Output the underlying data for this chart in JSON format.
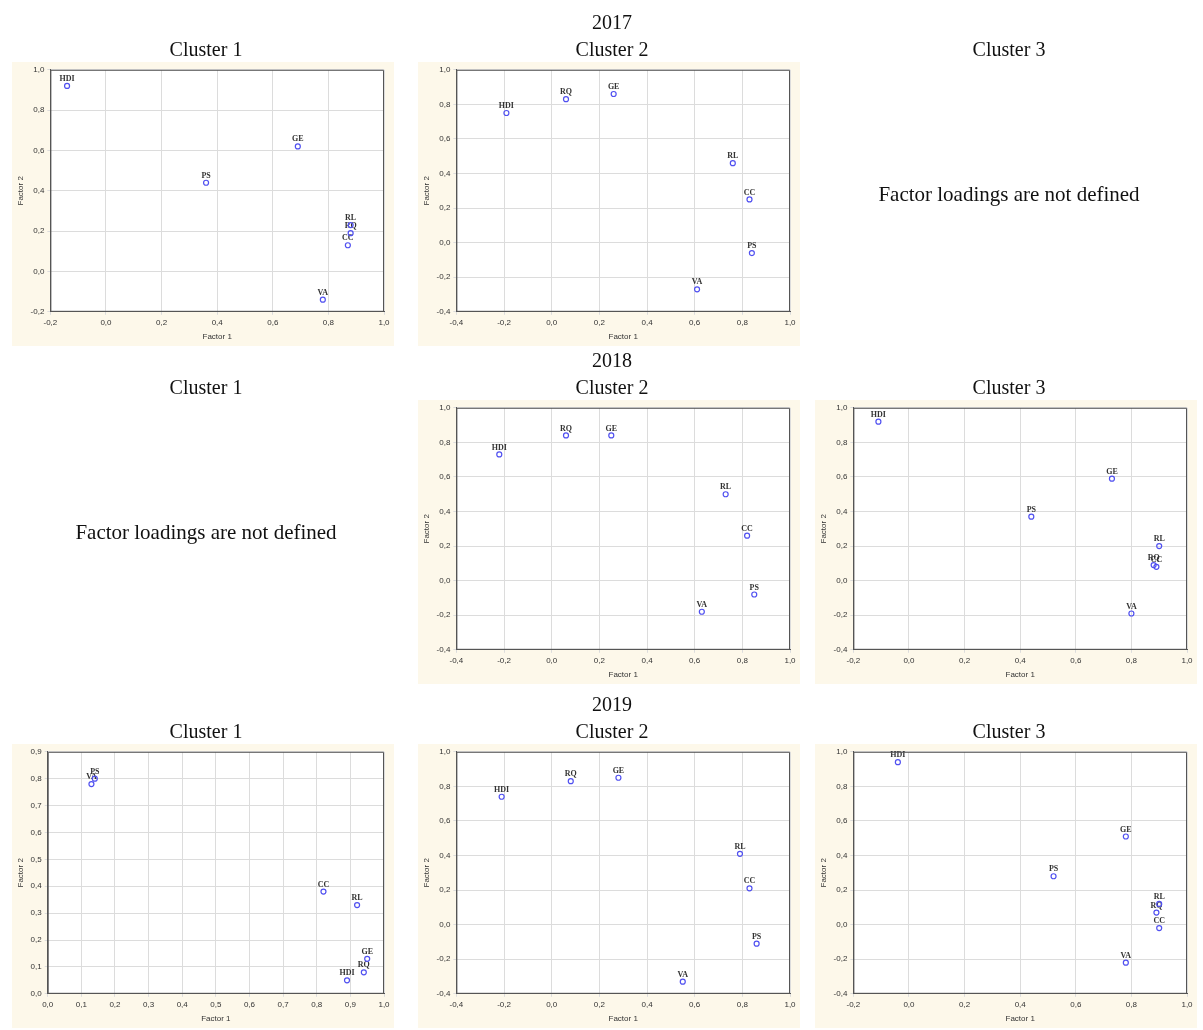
{
  "chart_data": [
    {
      "type": "scatter",
      "title": "Cluster 1",
      "xlabel": "Factor 1",
      "ylabel": "Factor 2",
      "marker": "circle",
      "grid": true,
      "xlim": [
        -0.2,
        1.0
      ],
      "ylim": [
        -0.2,
        1.0
      ],
      "xticks": [
        {
          "value": -0.2,
          "label": "-0,2"
        },
        {
          "value": 0,
          "label": "0,0"
        },
        {
          "value": 0.2,
          "label": "0,2"
        },
        {
          "value": 0.4,
          "label": "0,4"
        },
        {
          "value": 0.6,
          "label": "0,6"
        },
        {
          "value": 0.8,
          "label": "0,8"
        },
        {
          "value": 1.0,
          "label": "1,0"
        }
      ],
      "yticks": [
        {
          "value": -0.2,
          "label": "-0,2"
        },
        {
          "value": 0,
          "label": "0,0"
        },
        {
          "value": 0.2,
          "label": "0,2"
        },
        {
          "value": 0.4,
          "label": "0,4"
        },
        {
          "value": 0.6,
          "label": "0,6"
        },
        {
          "value": 0.8,
          "label": "0,8"
        },
        {
          "value": 1.0,
          "label": "1,0"
        }
      ],
      "series": [
        {
          "name": "HDI",
          "color": "#5050f0",
          "x": [
            -0.14
          ],
          "values": [
            0.92
          ]
        },
        {
          "name": "GE",
          "color": "#5050f0",
          "x": [
            0.69
          ],
          "values": [
            0.62
          ]
        },
        {
          "name": "PS",
          "color": "#5050f0",
          "x": [
            0.36
          ],
          "values": [
            0.44
          ]
        },
        {
          "name": "RL",
          "color": "#5050f0",
          "x": [
            0.88
          ],
          "values": [
            0.23
          ]
        },
        {
          "name": "RQ",
          "color": "#5050f0",
          "x": [
            0.88
          ],
          "values": [
            0.19
          ]
        },
        {
          "name": "CC",
          "color": "#5050f0",
          "x": [
            0.87
          ],
          "values": [
            0.13
          ]
        },
        {
          "name": "VA",
          "color": "#5050f0",
          "x": [
            0.78
          ],
          "values": [
            -0.14
          ]
        }
      ]
    },
    {
      "type": "scatter",
      "title": "Cluster 2",
      "annotations": [
        "2017"
      ],
      "xlabel": "Factor 1",
      "ylabel": "Factor 2",
      "marker": "circle",
      "grid": true,
      "xlim": [
        -0.4,
        1.0
      ],
      "ylim": [
        -0.4,
        1.0
      ],
      "xticks": [
        {
          "value": -0.4,
          "label": "-0,4"
        },
        {
          "value": -0.2,
          "label": "-0,2"
        },
        {
          "value": 0,
          "label": "0,0"
        },
        {
          "value": 0.2,
          "label": "0,2"
        },
        {
          "value": 0.4,
          "label": "0,4"
        },
        {
          "value": 0.6,
          "label": "0,6"
        },
        {
          "value": 0.8,
          "label": "0,8"
        },
        {
          "value": 1.0,
          "label": "1,0"
        }
      ],
      "yticks": [
        {
          "value": -0.4,
          "label": "-0,4"
        },
        {
          "value": -0.2,
          "label": "-0,2"
        },
        {
          "value": 0,
          "label": "0,0"
        },
        {
          "value": 0.2,
          "label": "0,2"
        },
        {
          "value": 0.4,
          "label": "0,4"
        },
        {
          "value": 0.6,
          "label": "0,6"
        },
        {
          "value": 0.8,
          "label": "0,8"
        },
        {
          "value": 1.0,
          "label": "1,0"
        }
      ],
      "series": [
        {
          "name": "HDI",
          "color": "#5050f0",
          "x": [
            -0.19
          ],
          "values": [
            0.75
          ]
        },
        {
          "name": "RQ",
          "color": "#5050f0",
          "x": [
            0.06
          ],
          "values": [
            0.83
          ]
        },
        {
          "name": "GE",
          "color": "#5050f0",
          "x": [
            0.26
          ],
          "values": [
            0.86
          ]
        },
        {
          "name": "RL",
          "color": "#5050f0",
          "x": [
            0.76
          ],
          "values": [
            0.46
          ]
        },
        {
          "name": "CC",
          "color": "#5050f0",
          "x": [
            0.83
          ],
          "values": [
            0.25
          ]
        },
        {
          "name": "PS",
          "color": "#5050f0",
          "x": [
            0.84
          ],
          "values": [
            -0.06
          ]
        },
        {
          "name": "VA",
          "color": "#5050f0",
          "x": [
            0.61
          ],
          "values": [
            -0.27
          ]
        }
      ]
    },
    {
      "type": "other",
      "title": "Cluster 3",
      "annotations": [
        "Factor loadings are not defined"
      ]
    },
    {
      "type": "other",
      "title": "Cluster 1",
      "annotations": [
        "Factor loadings are not defined"
      ]
    },
    {
      "type": "scatter",
      "title": "Cluster 2",
      "annotations": [
        "2018"
      ],
      "xlabel": "Factor 1",
      "ylabel": "Factor 2",
      "marker": "circle",
      "grid": true,
      "xlim": [
        -0.4,
        1.0
      ],
      "ylim": [
        -0.4,
        1.0
      ],
      "xticks": [
        {
          "value": -0.4,
          "label": "-0,4"
        },
        {
          "value": -0.2,
          "label": "-0,2"
        },
        {
          "value": 0,
          "label": "0,0"
        },
        {
          "value": 0.2,
          "label": "0,2"
        },
        {
          "value": 0.4,
          "label": "0,4"
        },
        {
          "value": 0.6,
          "label": "0,6"
        },
        {
          "value": 0.8,
          "label": "0,8"
        },
        {
          "value": 1.0,
          "label": "1,0"
        }
      ],
      "yticks": [
        {
          "value": -0.4,
          "label": "-0,4"
        },
        {
          "value": -0.2,
          "label": "-0,2"
        },
        {
          "value": 0,
          "label": "0,0"
        },
        {
          "value": 0.2,
          "label": "0,2"
        },
        {
          "value": 0.4,
          "label": "0,4"
        },
        {
          "value": 0.6,
          "label": "0,6"
        },
        {
          "value": 0.8,
          "label": "0,8"
        },
        {
          "value": 1.0,
          "label": "1,0"
        }
      ],
      "series": [
        {
          "name": "HDI",
          "color": "#5050f0",
          "x": [
            -0.22
          ],
          "values": [
            0.73
          ]
        },
        {
          "name": "RQ",
          "color": "#5050f0",
          "x": [
            0.06
          ],
          "values": [
            0.84
          ]
        },
        {
          "name": "GE",
          "color": "#5050f0",
          "x": [
            0.25
          ],
          "values": [
            0.84
          ]
        },
        {
          "name": "RL",
          "color": "#5050f0",
          "x": [
            0.73
          ],
          "values": [
            0.5
          ]
        },
        {
          "name": "CC",
          "color": "#5050f0",
          "x": [
            0.82
          ],
          "values": [
            0.26
          ]
        },
        {
          "name": "PS",
          "color": "#5050f0",
          "x": [
            0.85
          ],
          "values": [
            -0.08
          ]
        },
        {
          "name": "VA",
          "color": "#5050f0",
          "x": [
            0.63
          ],
          "values": [
            -0.18
          ]
        }
      ]
    },
    {
      "type": "scatter",
      "title": "Cluster 3",
      "xlabel": "Factor 1",
      "ylabel": "Factor 2",
      "marker": "circle",
      "grid": true,
      "xlim": [
        -0.2,
        1.0
      ],
      "ylim": [
        -0.4,
        1.0
      ],
      "xticks": [
        {
          "value": -0.2,
          "label": "-0,2"
        },
        {
          "value": 0,
          "label": "0,0"
        },
        {
          "value": 0.2,
          "label": "0,2"
        },
        {
          "value": 0.4,
          "label": "0,4"
        },
        {
          "value": 0.6,
          "label": "0,6"
        },
        {
          "value": 0.8,
          "label": "0,8"
        },
        {
          "value": 1.0,
          "label": "1,0"
        }
      ],
      "yticks": [
        {
          "value": -0.4,
          "label": "-0,4"
        },
        {
          "value": -0.2,
          "label": "-0,2"
        },
        {
          "value": 0,
          "label": "0,0"
        },
        {
          "value": 0.2,
          "label": "0,2"
        },
        {
          "value": 0.4,
          "label": "0,4"
        },
        {
          "value": 0.6,
          "label": "0,6"
        },
        {
          "value": 0.8,
          "label": "0,8"
        },
        {
          "value": 1.0,
          "label": "1,0"
        }
      ],
      "series": [
        {
          "name": "HDI",
          "color": "#5050f0",
          "x": [
            -0.11
          ],
          "values": [
            0.92
          ]
        },
        {
          "name": "GE",
          "color": "#5050f0",
          "x": [
            0.73
          ],
          "values": [
            0.59
          ]
        },
        {
          "name": "PS",
          "color": "#5050f0",
          "x": [
            0.44
          ],
          "values": [
            0.37
          ]
        },
        {
          "name": "RL",
          "color": "#5050f0",
          "x": [
            0.9
          ],
          "values": [
            0.2
          ]
        },
        {
          "name": "RQ",
          "color": "#5050f0",
          "x": [
            0.88
          ],
          "values": [
            0.09
          ]
        },
        {
          "name": "CC",
          "color": "#5050f0",
          "x": [
            0.89
          ],
          "values": [
            0.08
          ]
        },
        {
          "name": "VA",
          "color": "#5050f0",
          "x": [
            0.8
          ],
          "values": [
            -0.19
          ]
        }
      ]
    },
    {
      "type": "scatter",
      "title": "Cluster 1",
      "xlabel": "Factor 1",
      "ylabel": "Factor 2",
      "marker": "circle",
      "grid": true,
      "xlim": [
        0,
        1.0
      ],
      "ylim": [
        0,
        0.9
      ],
      "xticks": [
        {
          "value": 0,
          "label": "0,0"
        },
        {
          "value": 0.1,
          "label": "0,1"
        },
        {
          "value": 0.2,
          "label": "0,2"
        },
        {
          "value": 0.3,
          "label": "0,3"
        },
        {
          "value": 0.4,
          "label": "0,4"
        },
        {
          "value": 0.5,
          "label": "0,5"
        },
        {
          "value": 0.6,
          "label": "0,6"
        },
        {
          "value": 0.7,
          "label": "0,7"
        },
        {
          "value": 0.8,
          "label": "0,8"
        },
        {
          "value": 0.9,
          "label": "0,9"
        },
        {
          "value": 1.0,
          "label": "1,0"
        }
      ],
      "yticks": [
        {
          "value": 0,
          "label": "0,0"
        },
        {
          "value": 0.1,
          "label": "0,1"
        },
        {
          "value": 0.2,
          "label": "0,2"
        },
        {
          "value": 0.3,
          "label": "0,3"
        },
        {
          "value": 0.4,
          "label": "0,4"
        },
        {
          "value": 0.5,
          "label": "0,5"
        },
        {
          "value": 0.6,
          "label": "0,6"
        },
        {
          "value": 0.7,
          "label": "0,7"
        },
        {
          "value": 0.8,
          "label": "0,8"
        },
        {
          "value": 0.9,
          "label": "0,9"
        }
      ],
      "series": [
        {
          "name": "VA",
          "color": "#5050f0",
          "x": [
            0.13
          ],
          "values": [
            0.78
          ]
        },
        {
          "name": "PS",
          "color": "#5050f0",
          "x": [
            0.14
          ],
          "values": [
            0.8
          ]
        },
        {
          "name": "CC",
          "color": "#5050f0",
          "x": [
            0.82
          ],
          "values": [
            0.38
          ]
        },
        {
          "name": "RL",
          "color": "#5050f0",
          "x": [
            0.92
          ],
          "values": [
            0.33
          ]
        },
        {
          "name": "GE",
          "color": "#5050f0",
          "x": [
            0.95
          ],
          "values": [
            0.13
          ]
        },
        {
          "name": "RQ",
          "color": "#5050f0",
          "x": [
            0.94
          ],
          "values": [
            0.08
          ]
        },
        {
          "name": "HDI",
          "color": "#5050f0",
          "x": [
            0.89
          ],
          "values": [
            0.05
          ]
        }
      ]
    },
    {
      "type": "scatter",
      "title": "Cluster 2",
      "annotations": [
        "2019"
      ],
      "xlabel": "Factor 1",
      "ylabel": "Factor 2",
      "marker": "circle",
      "grid": true,
      "xlim": [
        -0.4,
        1.0
      ],
      "ylim": [
        -0.4,
        1.0
      ],
      "xticks": [
        {
          "value": -0.4,
          "label": "-0,4"
        },
        {
          "value": -0.2,
          "label": "-0,2"
        },
        {
          "value": 0,
          "label": "0,0"
        },
        {
          "value": 0.2,
          "label": "0,2"
        },
        {
          "value": 0.4,
          "label": "0,4"
        },
        {
          "value": 0.6,
          "label": "0,6"
        },
        {
          "value": 0.8,
          "label": "0,8"
        },
        {
          "value": 1.0,
          "label": "1,0"
        }
      ],
      "yticks": [
        {
          "value": -0.4,
          "label": "-0,4"
        },
        {
          "value": -0.2,
          "label": "-0,2"
        },
        {
          "value": 0,
          "label": "0,0"
        },
        {
          "value": 0.2,
          "label": "0,2"
        },
        {
          "value": 0.4,
          "label": "0,4"
        },
        {
          "value": 0.6,
          "label": "0,6"
        },
        {
          "value": 0.8,
          "label": "0,8"
        },
        {
          "value": 1.0,
          "label": "1,0"
        }
      ],
      "series": [
        {
          "name": "HDI",
          "color": "#5050f0",
          "x": [
            -0.21
          ],
          "values": [
            0.74
          ]
        },
        {
          "name": "RQ",
          "color": "#5050f0",
          "x": [
            0.08
          ],
          "values": [
            0.83
          ]
        },
        {
          "name": "GE",
          "color": "#5050f0",
          "x": [
            0.28
          ],
          "values": [
            0.85
          ]
        },
        {
          "name": "RL",
          "color": "#5050f0",
          "x": [
            0.79
          ],
          "values": [
            0.41
          ]
        },
        {
          "name": "CC",
          "color": "#5050f0",
          "x": [
            0.83
          ],
          "values": [
            0.21
          ]
        },
        {
          "name": "PS",
          "color": "#5050f0",
          "x": [
            0.86
          ],
          "values": [
            -0.11
          ]
        },
        {
          "name": "VA",
          "color": "#5050f0",
          "x": [
            0.55
          ],
          "values": [
            -0.33
          ]
        }
      ]
    },
    {
      "type": "scatter",
      "title": "Cluster 3",
      "xlabel": "Factor 1",
      "ylabel": "Factor 2",
      "marker": "circle",
      "grid": true,
      "xlim": [
        -0.2,
        1.0
      ],
      "ylim": [
        -0.4,
        1.0
      ],
      "xticks": [
        {
          "value": -0.2,
          "label": "-0,2"
        },
        {
          "value": 0,
          "label": "0,0"
        },
        {
          "value": 0.2,
          "label": "0,2"
        },
        {
          "value": 0.4,
          "label": "0,4"
        },
        {
          "value": 0.6,
          "label": "0,6"
        },
        {
          "value": 0.8,
          "label": "0,8"
        },
        {
          "value": 1.0,
          "label": "1,0"
        }
      ],
      "yticks": [
        {
          "value": -0.4,
          "label": "-0,4"
        },
        {
          "value": -0.2,
          "label": "-0,2"
        },
        {
          "value": 0,
          "label": "0,0"
        },
        {
          "value": 0.2,
          "label": "0,2"
        },
        {
          "value": 0.4,
          "label": "0,4"
        },
        {
          "value": 0.6,
          "label": "0,6"
        },
        {
          "value": 0.8,
          "label": "0,8"
        },
        {
          "value": 1.0,
          "label": "1,0"
        }
      ],
      "series": [
        {
          "name": "HDI",
          "color": "#5050f0",
          "x": [
            -0.04
          ],
          "values": [
            0.94
          ]
        },
        {
          "name": "GE",
          "color": "#5050f0",
          "x": [
            0.78
          ],
          "values": [
            0.51
          ]
        },
        {
          "name": "PS",
          "color": "#5050f0",
          "x": [
            0.52
          ],
          "values": [
            0.28
          ]
        },
        {
          "name": "RL",
          "color": "#5050f0",
          "x": [
            0.9
          ],
          "values": [
            0.12
          ]
        },
        {
          "name": "RQ",
          "color": "#5050f0",
          "x": [
            0.89
          ],
          "values": [
            0.07
          ]
        },
        {
          "name": "CC",
          "color": "#5050f0",
          "x": [
            0.9
          ],
          "values": [
            -0.02
          ]
        },
        {
          "name": "VA",
          "color": "#5050f0",
          "x": [
            0.78
          ],
          "values": [
            -0.22
          ]
        }
      ]
    }
  ]
}
